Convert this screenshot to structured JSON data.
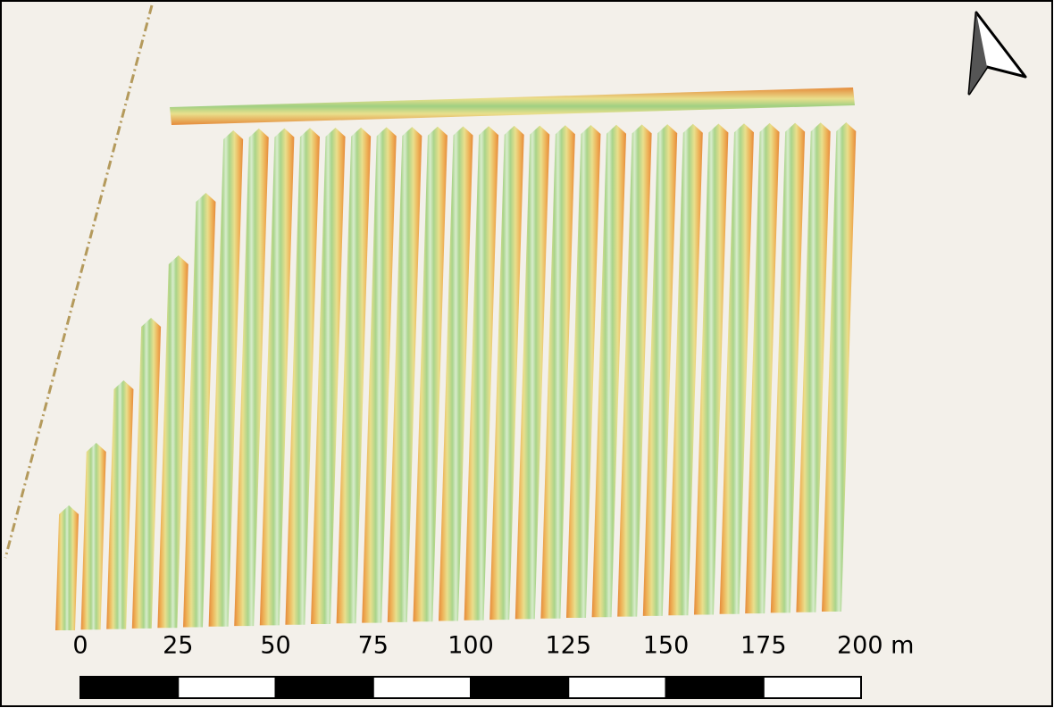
{
  "scale_bar": {
    "labels": [
      "0",
      "25",
      "50",
      "75",
      "100",
      "125",
      "150",
      "175",
      "200 m"
    ]
  }
}
